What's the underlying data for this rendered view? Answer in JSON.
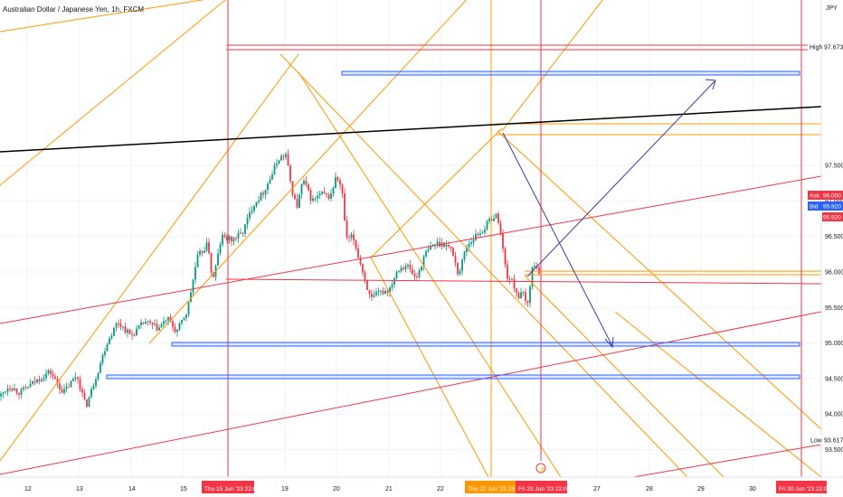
{
  "title": "Australian Dollar / Japanese Yen, 1h, FXCM",
  "currency": "JPY",
  "colors": {
    "up": "#089981",
    "down": "#f23645",
    "orange": "#ff9800",
    "red": "#f23645",
    "blue": "#2962ff",
    "black": "#000000",
    "purple": "#3f3ca0",
    "grid": "#f0f3fa",
    "text": "#131722"
  },
  "chart_data": {
    "type": "candlestick",
    "symbol": "AUDJPY",
    "timeframe": "1h",
    "source": "FXCM",
    "ylim": [
      93.35,
      98.3
    ],
    "y_ticks": [
      "93.500",
      "94.000",
      "94.500",
      "95.000",
      "95.500",
      "96.000",
      "96.500",
      "97.000",
      "97.500"
    ],
    "x_ticks": [
      "12",
      "13",
      "14",
      "15",
      "Thu 15 Jun '23",
      "22:00",
      "19",
      "20",
      "21",
      "22",
      "Thu 22 Jun '23",
      "23:00",
      "Fri 23 Jun '23",
      "22:00",
      "27",
      "28",
      "29",
      "30",
      "Fri 30 Jun '23",
      "22:00"
    ],
    "price_labels": {
      "high_label": "High",
      "high": "97.673",
      "ask_label": "Ask",
      "ask": "96.000",
      "bid_label": "Bid",
      "bid": "95.920",
      "last": "95.920",
      "low_label": "Low",
      "low": "93.617"
    },
    "path": [
      [
        0,
        94.25
      ],
      [
        10,
        94.4
      ],
      [
        22,
        94.3
      ],
      [
        38,
        94.45
      ],
      [
        55,
        94.6
      ],
      [
        70,
        94.3
      ],
      [
        85,
        94.55
      ],
      [
        95,
        94.1
      ],
      [
        108,
        94.6
      ],
      [
        118,
        95.0
      ],
      [
        130,
        95.3
      ],
      [
        145,
        95.1
      ],
      [
        160,
        95.3
      ],
      [
        175,
        95.2
      ],
      [
        185,
        95.35
      ],
      [
        195,
        95.15
      ],
      [
        207,
        95.45
      ],
      [
        218,
        96.2
      ],
      [
        230,
        96.4
      ],
      [
        235,
        95.85
      ],
      [
        245,
        96.5
      ],
      [
        256,
        96.45
      ],
      [
        268,
        96.55
      ],
      [
        280,
        96.95
      ],
      [
        290,
        97.1
      ],
      [
        300,
        97.35
      ],
      [
        308,
        97.6
      ],
      [
        316,
        97.65
      ],
      [
        322,
        97.2
      ],
      [
        328,
        96.9
      ],
      [
        335,
        97.3
      ],
      [
        345,
        97.0
      ],
      [
        355,
        97.1
      ],
      [
        365,
        97.05
      ],
      [
        372,
        97.35
      ],
      [
        378,
        97.15
      ],
      [
        383,
        96.45
      ],
      [
        390,
        96.5
      ],
      [
        400,
        96.05
      ],
      [
        410,
        95.6
      ],
      [
        418,
        95.7
      ],
      [
        430,
        95.75
      ],
      [
        440,
        96.05
      ],
      [
        450,
        96.1
      ],
      [
        460,
        95.9
      ],
      [
        470,
        96.25
      ],
      [
        480,
        96.4
      ],
      [
        492,
        96.4
      ],
      [
        500,
        96.3
      ],
      [
        507,
        95.95
      ],
      [
        515,
        96.35
      ],
      [
        525,
        96.5
      ],
      [
        535,
        96.6
      ],
      [
        542,
        96.75
      ],
      [
        550,
        96.8
      ],
      [
        554,
        96.5
      ],
      [
        560,
        95.95
      ],
      [
        567,
        95.85
      ],
      [
        573,
        95.65
      ],
      [
        578,
        95.7
      ],
      [
        583,
        95.5
      ],
      [
        588,
        96.05
      ],
      [
        593,
        96.1
      ],
      [
        598,
        95.93
      ]
    ]
  }
}
